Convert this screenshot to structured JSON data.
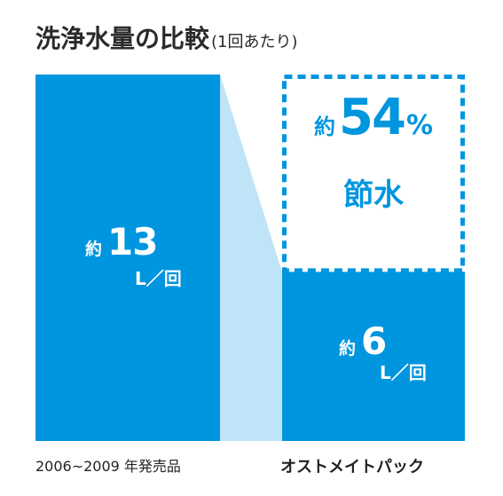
{
  "title": "洗浄水量の比較",
  "subtitle": "(1回あたり)",
  "chart_data": {
    "type": "bar",
    "categories": [
      "2006~2009 年発売品",
      "オストメイトパック"
    ],
    "values": [
      13,
      6
    ],
    "value_prefix": "約",
    "unit": "L／回",
    "ylim": [
      0,
      13
    ],
    "colors": {
      "bar": "#0095df",
      "connector": "#bfe4f8",
      "dotted_box": "#0095df"
    },
    "annotation": {
      "prefix": "約",
      "value": "54",
      "unit": "%",
      "text": "節水"
    }
  }
}
